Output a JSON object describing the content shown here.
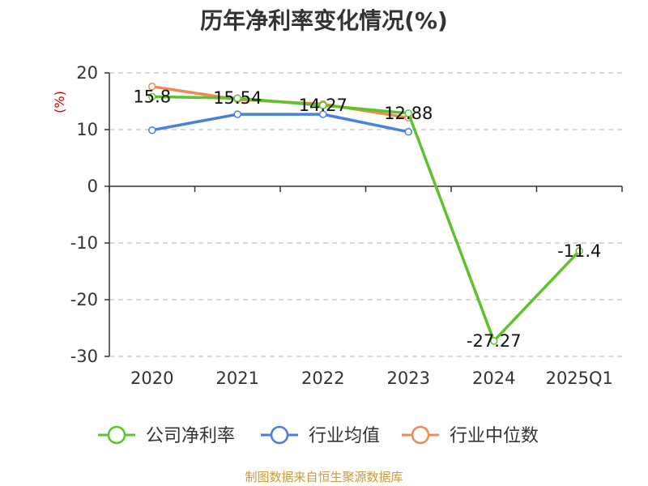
{
  "title": "历年净利率变化情况(%)",
  "source": "制图数据来自恒生聚源数据库",
  "chart_data": {
    "type": "line",
    "title": "历年净利率变化情况(%)",
    "unit_label": "(%)",
    "categories": [
      "2020",
      "2021",
      "2022",
      "2023",
      "2024",
      "2025Q1"
    ],
    "ylim": [
      -30,
      20
    ],
    "yticks": [
      20,
      10,
      0,
      -10,
      -20,
      -30
    ],
    "grid": true,
    "legend": "bottom",
    "series": [
      {
        "name": "公司净利率",
        "color": "#5cc42a",
        "values": [
          15.8,
          15.54,
          14.27,
          12.88,
          -27.27,
          -11.4
        ],
        "labels": [
          "15.8",
          "15.54",
          "14.27",
          "12.88",
          "-27.27",
          "-11.4"
        ]
      },
      {
        "name": "行业均值",
        "color": "#4a7fdc",
        "values": [
          9.9,
          12.7,
          12.7,
          9.6,
          null,
          null
        ]
      },
      {
        "name": "行业中位数",
        "color": "#f08a55",
        "values": [
          17.6,
          15.3,
          14.5,
          12.1,
          null,
          null
        ]
      }
    ]
  }
}
